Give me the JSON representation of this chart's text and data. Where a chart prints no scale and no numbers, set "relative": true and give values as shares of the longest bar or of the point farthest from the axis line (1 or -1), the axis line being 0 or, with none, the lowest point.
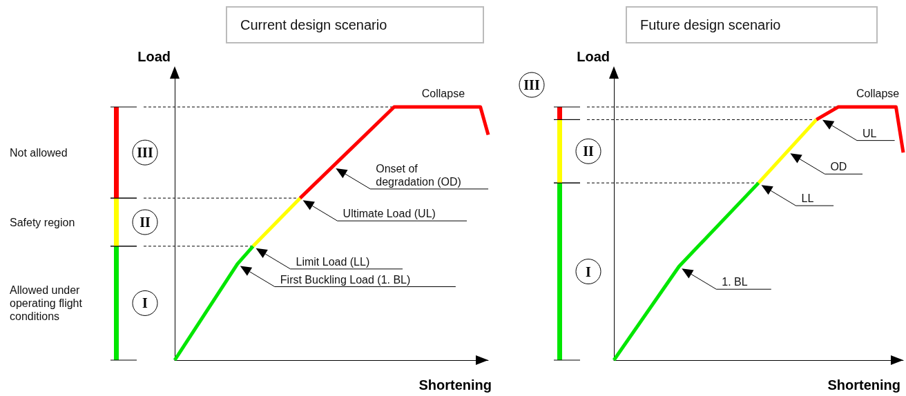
{
  "chart_data": [
    {
      "type": "line",
      "title": "Current design scenario",
      "xlabel": "Shortening",
      "ylabel": "Load",
      "relative": true,
      "line_style": "solid",
      "categories": [
        null,
        null,
        null,
        null,
        null,
        null,
        null,
        null,
        null,
        null,
        null,
        null,
        null,
        null,
        null,
        null,
        null,
        null,
        null,
        null,
        null,
        null,
        null,
        null,
        null,
        null,
        null,
        null,
        null,
        null,
        null,
        null,
        null,
        null,
        null,
        null,
        null,
        null,
        null,
        null,
        null
      ],
      "series": [
        {
          "color": "#00e600",
          "values": [
            0,
            null,
            null,
            null,
            null,
            null,
            null,
            null,
            0.38,
            null,
            0.45,
            null,
            null,
            null,
            null,
            null,
            null,
            null,
            null,
            null,
            null,
            null,
            null,
            null,
            null,
            null,
            null,
            null,
            null,
            null,
            null,
            null,
            null,
            null,
            null,
            null,
            null,
            null,
            null,
            null,
            null
          ]
        },
        {
          "color": "#ffff00",
          "values": [
            null,
            null,
            null,
            null,
            null,
            null,
            null,
            null,
            null,
            null,
            0.45,
            null,
            null,
            null,
            null,
            null,
            0.64,
            null,
            null,
            null,
            null,
            null,
            null,
            null,
            null,
            null,
            null,
            null,
            null,
            null,
            null,
            null,
            null,
            null,
            null,
            null,
            null,
            null,
            null,
            null,
            null
          ]
        },
        {
          "color": "#ff0000",
          "values": [
            null,
            null,
            null,
            null,
            null,
            null,
            null,
            null,
            null,
            null,
            null,
            null,
            null,
            null,
            null,
            null,
            0.64,
            null,
            null,
            null,
            null,
            null,
            null,
            null,
            null,
            null,
            null,
            null,
            1,
            null,
            null,
            null,
            null,
            null,
            null,
            null,
            null,
            null,
            null,
            1,
            0.89
          ]
        }
      ],
      "ref_lines": [
        {
          "axis": "y",
          "value": 1,
          "label": "Collapse"
        },
        {
          "axis": "y",
          "value": 0.64,
          "label": null
        },
        {
          "axis": "y",
          "value": 0.45,
          "label": null
        }
      ],
      "annotations": [
        "Not allowed",
        "Safety region",
        "Allowed under operating flight conditions",
        "I",
        "II",
        "III",
        "Onset of degradation (OD)",
        "Ultimate Load (UL)",
        "Limit Load (LL)",
        "First Buckling Load (1. BL)"
      ]
    },
    {
      "type": "line",
      "title": "Future design scenario",
      "xlabel": "Shortening",
      "ylabel": "Load",
      "relative": true,
      "line_style": "solid",
      "categories": [
        null,
        null,
        null,
        null,
        null,
        null,
        null,
        null,
        null,
        null,
        null,
        null,
        null,
        null,
        null,
        null,
        null,
        null,
        null,
        null,
        null,
        null,
        null,
        null,
        null,
        null,
        null,
        null,
        null,
        null,
        null,
        null,
        null,
        null,
        null,
        null,
        null,
        null,
        null,
        null,
        null
      ],
      "series": [
        {
          "color": "#00e600",
          "values": [
            0,
            null,
            null,
            null,
            null,
            null,
            null,
            null,
            null,
            0.37,
            null,
            null,
            null,
            null,
            null,
            null,
            null,
            null,
            null,
            null,
            0.7,
            null,
            null,
            null,
            null,
            null,
            null,
            null,
            null,
            null,
            null,
            null,
            null,
            null,
            null,
            null,
            null,
            null,
            null,
            null,
            null
          ]
        },
        {
          "color": "#ffff00",
          "values": [
            null,
            null,
            null,
            null,
            null,
            null,
            null,
            null,
            null,
            null,
            null,
            null,
            null,
            null,
            null,
            null,
            null,
            null,
            null,
            null,
            0.7,
            null,
            null,
            null,
            null,
            null,
            null,
            null,
            0.95,
            null,
            null,
            null,
            null,
            null,
            null,
            null,
            null,
            null,
            null,
            null,
            null
          ]
        },
        {
          "color": "#ff0000",
          "values": [
            null,
            null,
            null,
            null,
            null,
            null,
            null,
            null,
            null,
            null,
            null,
            null,
            null,
            null,
            null,
            null,
            null,
            null,
            null,
            null,
            null,
            null,
            null,
            null,
            null,
            null,
            null,
            null,
            0.95,
            null,
            null,
            1,
            null,
            null,
            null,
            null,
            null,
            null,
            null,
            1,
            0.82
          ]
        }
      ],
      "ref_lines": [
        {
          "axis": "y",
          "value": 1,
          "label": "Collapse"
        },
        {
          "axis": "y",
          "value": 0.95,
          "label": null
        },
        {
          "axis": "y",
          "value": 0.7,
          "label": null
        }
      ],
      "annotations": [
        "III",
        "II",
        "I",
        "UL",
        "OD",
        "LL",
        "1. BL"
      ]
    }
  ]
}
